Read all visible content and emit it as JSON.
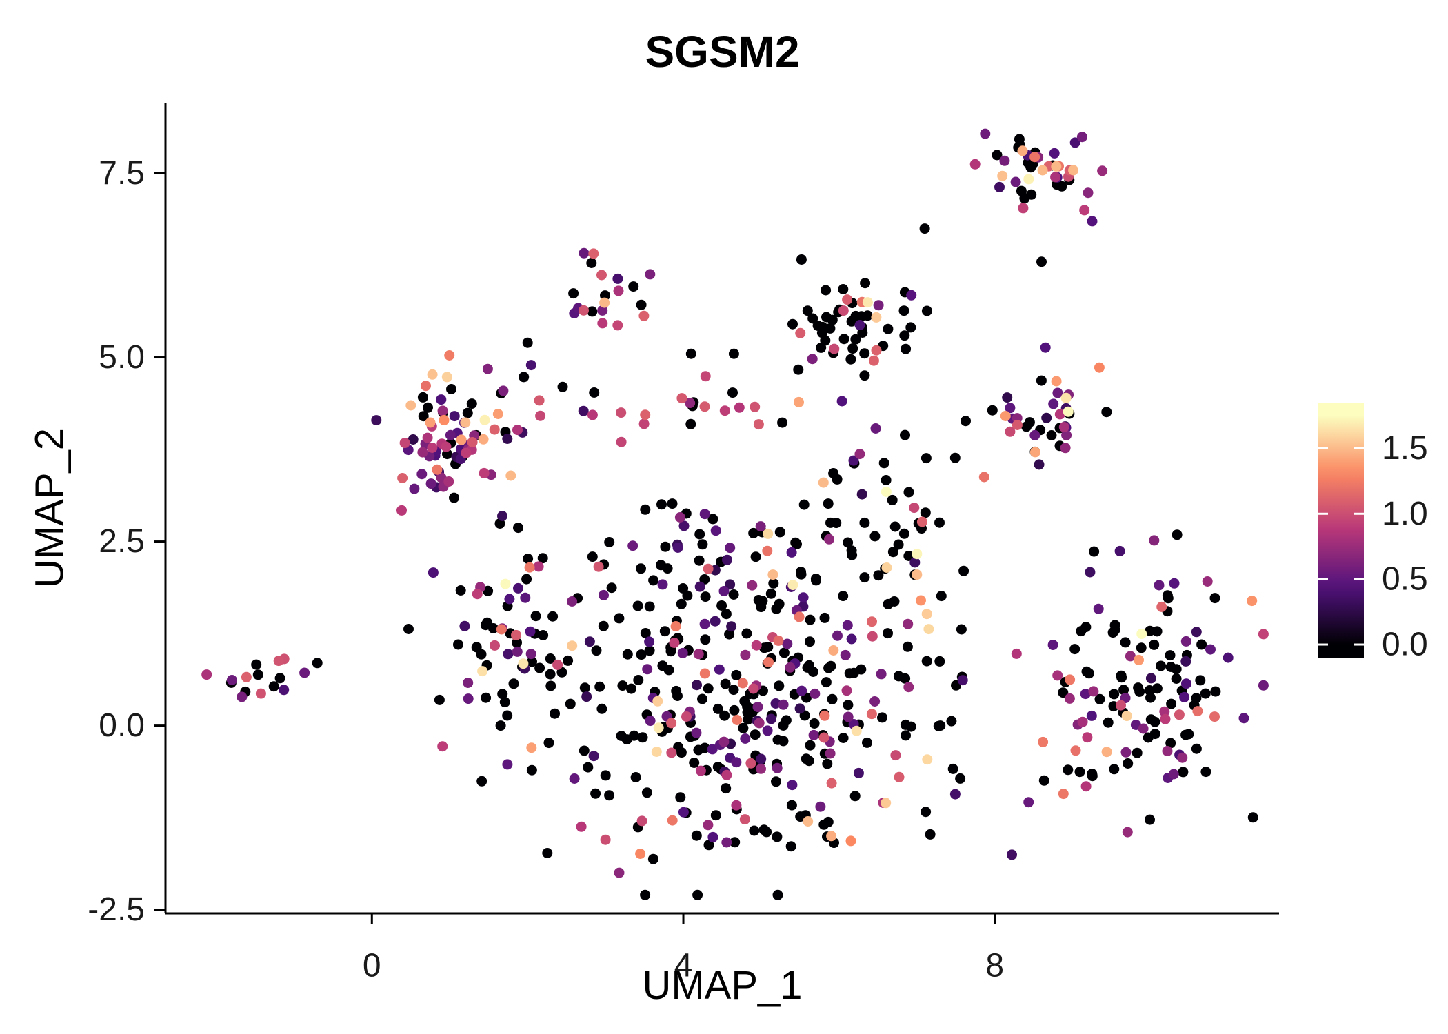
{
  "chart_data": {
    "type": "scatter",
    "title": "SGSM2",
    "xlabel": "UMAP_1",
    "ylabel": "UMAP_2",
    "x_range": [
      -2.65,
      11.65
    ],
    "y_range": [
      -2.55,
      8.45
    ],
    "x_ticks": [
      {
        "value": 0,
        "label": "0"
      },
      {
        "value": 4,
        "label": "4"
      },
      {
        "value": 8,
        "label": "8"
      }
    ],
    "y_ticks": [
      {
        "value": -2.5,
        "label": "-2.5"
      },
      {
        "value": 0.0,
        "label": "0.0"
      },
      {
        "value": 2.5,
        "label": "2.5"
      },
      {
        "value": 5.0,
        "label": "5.0"
      },
      {
        "value": 7.5,
        "label": "7.5"
      }
    ],
    "grid": false,
    "point_radius": 7.5,
    "seed": 42,
    "legend": {
      "position": "right",
      "orientation": "vertical",
      "value_range": [
        -0.1,
        1.85
      ],
      "max_expression": 1.75,
      "ticks": [
        {
          "value": 0.0,
          "label": "0.0"
        },
        {
          "value": 0.5,
          "label": "0.5"
        },
        {
          "value": 1.0,
          "label": "1.0"
        },
        {
          "value": 1.5,
          "label": "1.5"
        }
      ],
      "colormap": "magma",
      "colormap_stops": [
        [
          0.0,
          "#000004"
        ],
        [
          0.25,
          "#51127c"
        ],
        [
          0.5,
          "#b73779"
        ],
        [
          0.75,
          "#fb8861"
        ],
        [
          1.0,
          "#fcfdbf"
        ]
      ]
    },
    "value_buckets": {
      "zero": 0,
      "low": [
        0.25,
        0.75
      ],
      "mid": [
        0.8,
        1.25
      ],
      "high": [
        1.3,
        1.75
      ]
    },
    "clusters": [
      {
        "name": "left-small",
        "cx": -1.4,
        "cy": 0.62,
        "sx": 0.22,
        "sy": 0.12,
        "n": 15,
        "mix": [
          0.55,
          0.2,
          0.15,
          0.1
        ]
      },
      {
        "name": "top-right",
        "cx": 8.65,
        "cy": 7.55,
        "sx": 0.42,
        "sy": 0.22,
        "n": 42,
        "mix": [
          0.33,
          0.27,
          0.27,
          0.13
        ]
      },
      {
        "name": "upper-left-small",
        "cx": 2.9,
        "cy": 5.7,
        "sx": 0.28,
        "sy": 0.3,
        "n": 20,
        "mix": [
          0.4,
          0.25,
          0.2,
          0.15
        ]
      },
      {
        "name": "top-middle",
        "cx": 6.15,
        "cy": 5.45,
        "sx": 0.45,
        "sy": 0.4,
        "n": 55,
        "mix": [
          0.72,
          0.1,
          0.12,
          0.06
        ]
      },
      {
        "name": "right-middle",
        "cx": 8.6,
        "cy": 4.3,
        "sx": 0.38,
        "sy": 0.42,
        "n": 38,
        "mix": [
          0.42,
          0.3,
          0.18,
          0.1
        ]
      },
      {
        "name": "left-main",
        "cx": 1.15,
        "cy": 3.8,
        "sx": 0.45,
        "sy": 0.55,
        "n": 80,
        "mix": [
          0.36,
          0.38,
          0.18,
          0.08
        ]
      },
      {
        "name": "left-lower-arm",
        "cx": 1.8,
        "cy": 1.3,
        "sx": 0.5,
        "sy": 0.65,
        "n": 55,
        "mix": [
          0.55,
          0.3,
          0.1,
          0.05
        ]
      },
      {
        "name": "central-mass",
        "cx": 4.7,
        "cy": 0.2,
        "sx": 1.3,
        "sy": 0.95,
        "n": 320,
        "mix": [
          0.6,
          0.27,
          0.09,
          0.04
        ]
      },
      {
        "name": "central-upper",
        "cx": 4.4,
        "cy": 2.2,
        "sx": 1.15,
        "sy": 0.5,
        "n": 60,
        "mix": [
          0.62,
          0.22,
          0.11,
          0.05
        ]
      },
      {
        "name": "mid-band",
        "cx": 4.2,
        "cy": 4.32,
        "sx": 0.95,
        "sy": 0.16,
        "n": 22,
        "mix": [
          0.4,
          0.2,
          0.3,
          0.1
        ]
      },
      {
        "name": "right-main",
        "cx": 9.85,
        "cy": 0.55,
        "sx": 0.72,
        "sy": 0.8,
        "n": 125,
        "mix": [
          0.52,
          0.28,
          0.14,
          0.06
        ]
      },
      {
        "name": "center-right-connector",
        "cx": 6.6,
        "cy": 2.9,
        "sx": 0.55,
        "sy": 0.6,
        "n": 35,
        "mix": [
          0.7,
          0.15,
          0.1,
          0.05
        ]
      }
    ],
    "extra_points": [
      [
        -0.7,
        0.85,
        0
      ],
      [
        7.1,
        6.75,
        0
      ],
      [
        8.6,
        6.3,
        0
      ],
      [
        9.15,
        7.0,
        0.9
      ],
      [
        9.25,
        6.85,
        0.45
      ],
      [
        4.1,
        5.05,
        0
      ],
      [
        4.65,
        5.05,
        0
      ],
      [
        2.0,
        5.2,
        0
      ],
      [
        2.45,
        4.6,
        0
      ],
      [
        7.6,
        2.1,
        0
      ],
      [
        7.3,
        0.0,
        0
      ],
      [
        7.0,
        2.33,
        1.72
      ],
      [
        7.0,
        2.05,
        1.5
      ],
      [
        7.05,
        1.7,
        1.35
      ],
      [
        5.15,
        2.05,
        1.5
      ],
      [
        3.0,
        -1.55,
        1.0
      ],
      [
        5.6,
        -1.3,
        1.5
      ],
      [
        2.05,
        -0.3,
        1.4
      ],
      [
        1.45,
        4.15,
        1.7
      ],
      [
        0.5,
        4.35,
        1.5
      ],
      [
        5.8,
        3.3,
        1.5
      ],
      [
        3.2,
        4.25,
        1.0
      ],
      [
        6.6,
        -1.05,
        1.55
      ],
      [
        5.9,
        -1.5,
        1.45
      ]
    ]
  }
}
